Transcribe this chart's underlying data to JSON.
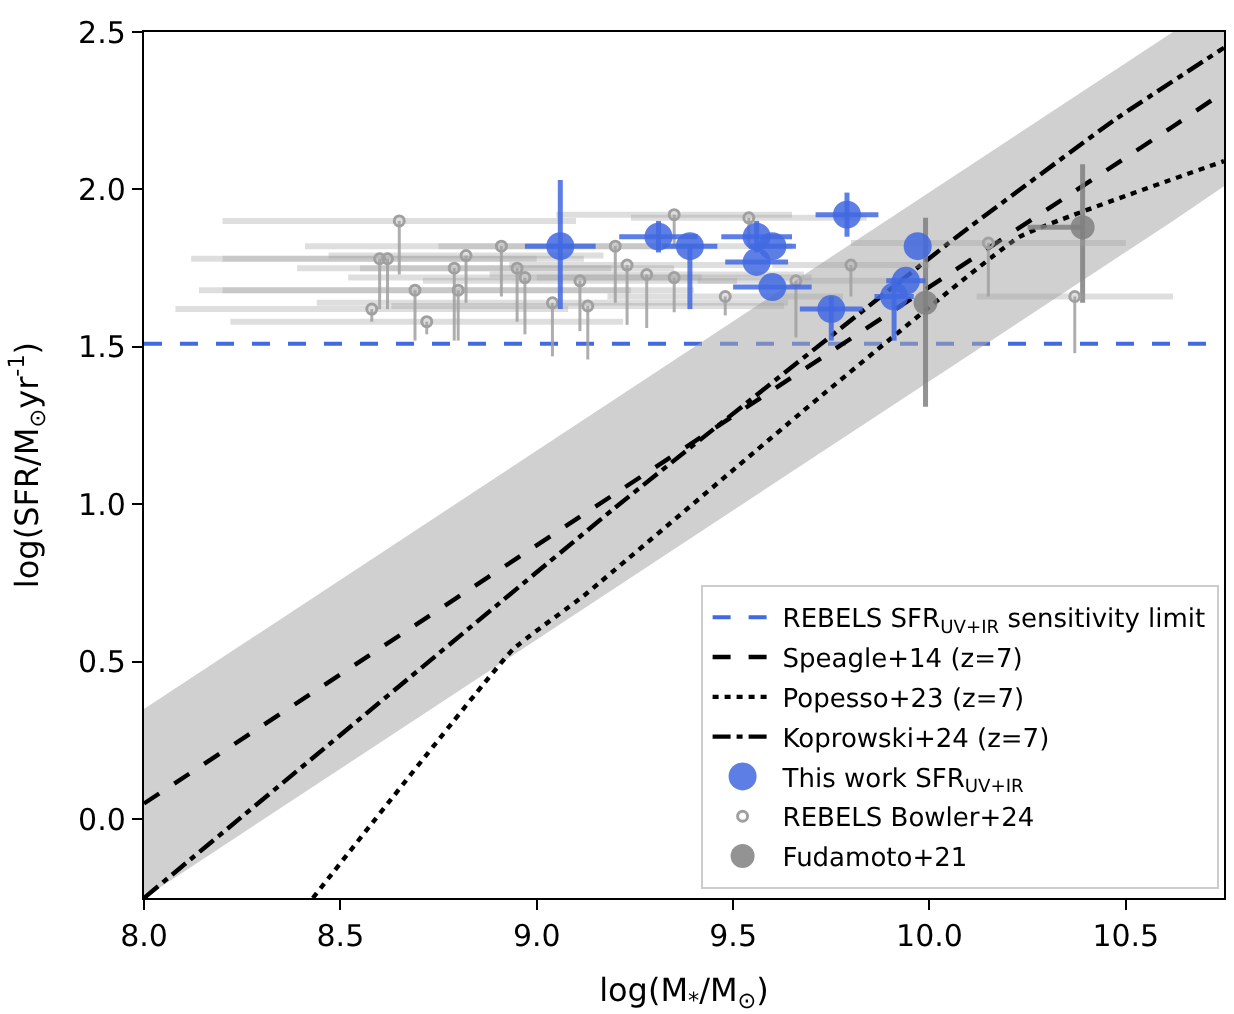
{
  "chart_data": {
    "type": "scatter",
    "xlabel": "log(M$_{*}$/M$_{⊙}$)",
    "ylabel": "log(SFR/M$_{⊙}$yr$^{-1}$)",
    "xlim": [
      8.0,
      10.75
    ],
    "ylim": [
      -0.25,
      2.5
    ],
    "xticks": [
      {
        "value": 8.0,
        "label": "8.0"
      },
      {
        "value": 8.5,
        "label": "8.5"
      },
      {
        "value": 9.0,
        "label": "9.0"
      },
      {
        "value": 9.5,
        "label": "9.5"
      },
      {
        "value": 10.0,
        "label": "10.0"
      },
      {
        "value": 10.5,
        "label": "10.5"
      }
    ],
    "yticks": [
      {
        "value": 0.0,
        "label": "0.0"
      },
      0.5,
      {
        "value": 1.0,
        "label": "1.0"
      },
      1.5,
      {
        "value": 2.0,
        "label": "2.0"
      },
      2.5
    ],
    "legend": "bottom right",
    "marker": "circle",
    "ref_lines": [
      {
        "axis": "y",
        "value": 1.51,
        "label": "REBELS SFR$_{UV+IR}$ sensitivity limit",
        "color": "#4169e1",
        "line_style": "dashed"
      }
    ],
    "series": [
      {
        "name": "Speagle+14 (z=7)",
        "type": "line",
        "marker": "none",
        "line_style": "dashed",
        "color": "#000000",
        "x": [
          8.0,
          10.62,
          10.75
        ],
        "values": [
          0.05,
          2.2,
          2.31
        ],
        "lower": [
          -0.25,
          1.9,
          2.01
        ],
        "upper": [
          0.35,
          2.5,
          2.5
        ]
      },
      {
        "name": "Popesso+23 (z=7)",
        "type": "line",
        "marker": "none",
        "line_style": "dotted",
        "color": "#000000",
        "x": [
          8.43,
          8.94,
          9.12,
          9.72,
          10.23,
          10.75
        ],
        "values": [
          -0.25,
          0.54,
          0.71,
          1.34,
          1.85,
          2.09
        ]
      },
      {
        "name": "Koprowski+24 (z=7)",
        "type": "line",
        "marker": "none",
        "line_style": "dashdot",
        "color": "#000000",
        "x": [
          8.0,
          9.2,
          10.07,
          10.47,
          10.75
        ],
        "values": [
          -0.25,
          0.99,
          1.85,
          2.22,
          2.45
        ]
      },
      {
        "name": "This work SFR$_{UV+IR}$",
        "color": "#4169e1",
        "x": [
          9.06,
          9.31,
          9.39,
          9.56,
          9.56,
          9.6,
          9.6,
          9.75,
          9.79,
          9.97,
          9.94,
          9.91
        ],
        "values": [
          1.82,
          1.85,
          1.82,
          1.85,
          1.77,
          1.82,
          1.69,
          1.62,
          1.92,
          1.82,
          1.71,
          1.66
        ],
        "errors": [
          [
            1.62,
            2.03
          ],
          [
            1.8,
            1.9
          ],
          [
            1.62,
            1.82
          ],
          [
            1.8,
            1.9
          ],
          null,
          null,
          null,
          [
            1.52,
            1.66
          ],
          [
            1.85,
            1.99
          ],
          null,
          null,
          [
            1.52,
            1.72
          ]
        ],
        "xerrors": [
          0.09,
          0.1,
          0.07,
          0.09,
          0.08,
          0.06,
          0.1,
          0.08,
          0.08,
          null,
          0.05,
          0.05
        ]
      },
      {
        "name": "REBELS Bowler+24",
        "color": "#a0a0a0",
        "x": [
          8.58,
          8.6,
          8.62,
          8.65,
          8.69,
          8.72,
          8.79,
          8.8,
          8.82,
          8.91,
          8.95,
          8.97,
          9.04,
          9.11,
          9.13,
          9.2,
          9.23,
          9.28,
          9.35,
          9.35,
          9.48,
          9.54,
          9.66,
          9.8,
          10.15,
          10.37
        ],
        "values": [
          1.62,
          1.78,
          1.78,
          1.9,
          1.68,
          1.58,
          1.75,
          1.68,
          1.79,
          1.82,
          1.75,
          1.72,
          1.64,
          1.71,
          1.63,
          1.82,
          1.76,
          1.73,
          1.92,
          1.72,
          1.66,
          1.91,
          1.71,
          1.76,
          1.83,
          1.66
        ],
        "errors": [
          [
            1.58,
            1.62
          ],
          [
            1.62,
            1.78
          ],
          [
            1.62,
            1.78
          ],
          [
            1.73,
            1.9
          ],
          [
            1.52,
            1.68
          ],
          [
            1.54,
            1.58
          ],
          [
            1.52,
            1.75
          ],
          [
            1.52,
            1.68
          ],
          [
            1.64,
            1.79
          ],
          [
            1.66,
            1.82
          ],
          [
            1.58,
            1.75
          ],
          [
            1.54,
            1.72
          ],
          [
            1.47,
            1.64
          ],
          [
            1.55,
            1.71
          ],
          [
            1.46,
            1.63
          ],
          [
            1.64,
            1.82
          ],
          [
            1.57,
            1.76
          ],
          [
            1.56,
            1.73
          ],
          [
            1.82,
            1.92
          ],
          [
            1.61,
            1.72
          ],
          [
            1.6,
            1.66
          ],
          [
            1.82,
            1.91
          ],
          [
            1.53,
            1.71
          ],
          [
            1.66,
            1.76
          ],
          [
            1.66,
            1.83
          ],
          [
            1.48,
            1.66
          ]
        ],
        "xerrors": [
          0.5,
          0.4,
          0.5,
          0.45,
          0.55,
          0.5,
          0.4,
          0.6,
          0.35,
          0.5,
          0.4,
          0.45,
          0.6,
          0.4,
          0.5,
          0.45,
          0.3,
          0.4,
          0.3,
          0.35,
          0.3,
          0.3,
          0.25,
          0.2,
          0.35,
          0.25
        ]
      },
      {
        "name": "Fudamoto+21",
        "color": "#808080",
        "x": [
          9.99,
          10.39
        ],
        "values": [
          1.64,
          1.88
        ],
        "errors": [
          [
            1.31,
            1.91
          ],
          [
            1.64,
            2.08
          ]
        ],
        "xerrors": [
          null,
          [
            10.25,
            10.39
          ]
        ]
      }
    ]
  }
}
